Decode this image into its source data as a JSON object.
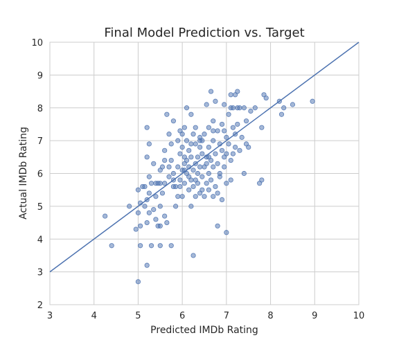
{
  "chart_data": {
    "type": "scatter",
    "title": "Final Model Prediction vs. Target",
    "xlabel": "Predicted IMDb Rating",
    "ylabel": "Actual IMDb Rating",
    "xlim": [
      3,
      10
    ],
    "ylim": [
      2,
      10
    ],
    "xticks": [
      3,
      4,
      5,
      6,
      7,
      8,
      9,
      10
    ],
    "yticks": [
      2,
      3,
      4,
      5,
      6,
      7,
      8,
      9,
      10
    ],
    "grid": true,
    "reference_line": {
      "from": [
        3,
        3
      ],
      "to": [
        10,
        10
      ]
    },
    "series": [
      {
        "color": "#4c72b0",
        "points": [
          [
            4.25,
            4.7
          ],
          [
            4.4,
            3.8
          ],
          [
            4.8,
            5.0
          ],
          [
            4.95,
            4.3
          ],
          [
            5.0,
            2.7
          ],
          [
            5.05,
            4.4
          ],
          [
            5.05,
            3.8
          ],
          [
            5.0,
            4.8
          ],
          [
            5.0,
            5.5
          ],
          [
            5.05,
            5.1
          ],
          [
            5.1,
            5.6
          ],
          [
            5.15,
            5.0
          ],
          [
            5.15,
            5.6
          ],
          [
            5.2,
            3.2
          ],
          [
            5.2,
            4.5
          ],
          [
            5.25,
            4.8
          ],
          [
            5.2,
            5.2
          ],
          [
            5.25,
            5.9
          ],
          [
            5.2,
            6.5
          ],
          [
            5.25,
            6.9
          ],
          [
            5.2,
            7.4
          ],
          [
            5.3,
            3.8
          ],
          [
            5.3,
            5.7
          ],
          [
            5.35,
            4.9
          ],
          [
            5.35,
            6.3
          ],
          [
            5.4,
            4.6
          ],
          [
            5.4,
            5.3
          ],
          [
            5.45,
            4.4
          ],
          [
            5.45,
            5.7
          ],
          [
            5.5,
            3.8
          ],
          [
            5.5,
            4.4
          ],
          [
            5.5,
            5.0
          ],
          [
            5.5,
            6.1
          ],
          [
            5.55,
            5.4
          ],
          [
            5.55,
            6.2
          ],
          [
            5.6,
            4.7
          ],
          [
            5.6,
            5.7
          ],
          [
            5.6,
            6.4
          ],
          [
            5.6,
            6.7
          ],
          [
            5.65,
            4.5
          ],
          [
            5.65,
            7.8
          ],
          [
            5.7,
            5.9
          ],
          [
            5.7,
            6.2
          ],
          [
            5.7,
            7.2
          ],
          [
            5.75,
            3.8
          ],
          [
            5.75,
            6.4
          ],
          [
            5.75,
            6.9
          ],
          [
            5.8,
            5.6
          ],
          [
            5.8,
            6.0
          ],
          [
            5.8,
            7.6
          ],
          [
            5.85,
            5.0
          ],
          [
            5.85,
            5.6
          ],
          [
            5.9,
            5.3
          ],
          [
            5.9,
            6.2
          ],
          [
            5.9,
            7.0
          ],
          [
            5.95,
            5.6
          ],
          [
            5.95,
            5.8
          ],
          [
            5.95,
            7.3
          ],
          [
            6.0,
            5.3
          ],
          [
            6.0,
            6.1
          ],
          [
            6.0,
            6.8
          ],
          [
            6.0,
            7.2
          ],
          [
            6.05,
            5.7
          ],
          [
            6.05,
            6.3
          ],
          [
            6.05,
            7.4
          ],
          [
            6.1,
            6.0
          ],
          [
            6.1,
            6.4
          ],
          [
            6.1,
            7.0
          ],
          [
            6.1,
            8.0
          ],
          [
            6.15,
            5.5
          ],
          [
            6.15,
            6.2
          ],
          [
            6.15,
            6.7
          ],
          [
            6.2,
            5.0
          ],
          [
            6.2,
            5.8
          ],
          [
            6.2,
            6.5
          ],
          [
            6.2,
            7.8
          ],
          [
            6.25,
            3.5
          ],
          [
            6.25,
            5.6
          ],
          [
            6.25,
            6.1
          ],
          [
            6.25,
            7.2
          ],
          [
            6.3,
            5.3
          ],
          [
            6.3,
            6.3
          ],
          [
            6.3,
            6.9
          ],
          [
            6.3,
            7.4
          ],
          [
            6.35,
            5.7
          ],
          [
            6.35,
            6.0
          ],
          [
            6.35,
            6.5
          ],
          [
            6.4,
            5.4
          ],
          [
            6.4,
            6.2
          ],
          [
            6.4,
            6.8
          ],
          [
            6.4,
            7.1
          ],
          [
            6.45,
            5.5
          ],
          [
            6.45,
            5.9
          ],
          [
            6.45,
            6.6
          ],
          [
            6.5,
            5.3
          ],
          [
            6.5,
            6.2
          ],
          [
            6.5,
            7.2
          ],
          [
            6.55,
            5.7
          ],
          [
            6.55,
            6.5
          ],
          [
            6.55,
            8.1
          ],
          [
            6.6,
            5.5
          ],
          [
            6.6,
            6.0
          ],
          [
            6.6,
            6.8
          ],
          [
            6.6,
            7.4
          ],
          [
            6.65,
            5.8
          ],
          [
            6.65,
            6.4
          ],
          [
            6.65,
            8.5
          ],
          [
            6.7,
            5.3
          ],
          [
            6.7,
            6.2
          ],
          [
            6.7,
            7.0
          ],
          [
            6.7,
            7.6
          ],
          [
            6.75,
            5.6
          ],
          [
            6.75,
            6.6
          ],
          [
            6.75,
            8.2
          ],
          [
            6.8,
            4.4
          ],
          [
            6.8,
            5.4
          ],
          [
            6.8,
            6.3
          ],
          [
            6.8,
            7.3
          ],
          [
            6.85,
            5.9
          ],
          [
            6.85,
            6.9
          ],
          [
            6.9,
            5.2
          ],
          [
            6.9,
            6.7
          ],
          [
            6.9,
            7.5
          ],
          [
            6.95,
            6.2
          ],
          [
            6.95,
            8.1
          ],
          [
            7.0,
            4.2
          ],
          [
            7.0,
            5.7
          ],
          [
            7.0,
            6.6
          ],
          [
            7.0,
            7.1
          ],
          [
            7.05,
            7.8
          ],
          [
            7.1,
            5.8
          ],
          [
            7.1,
            6.4
          ],
          [
            7.1,
            8.4
          ],
          [
            7.15,
            6.6
          ],
          [
            7.15,
            7.4
          ],
          [
            7.15,
            8.0
          ],
          [
            7.2,
            6.8
          ],
          [
            7.2,
            7.2
          ],
          [
            7.2,
            8.4
          ],
          [
            7.25,
            7.5
          ],
          [
            7.25,
            8.5
          ],
          [
            7.3,
            6.7
          ],
          [
            7.3,
            8.0
          ],
          [
            7.35,
            7.1
          ],
          [
            7.4,
            6.0
          ],
          [
            7.4,
            8.0
          ],
          [
            7.45,
            6.9
          ],
          [
            7.45,
            7.6
          ],
          [
            7.5,
            6.8
          ],
          [
            7.55,
            7.9
          ],
          [
            7.65,
            8.0
          ],
          [
            7.75,
            5.7
          ],
          [
            7.8,
            5.8
          ],
          [
            7.8,
            7.4
          ],
          [
            7.85,
            8.4
          ],
          [
            7.9,
            8.3
          ],
          [
            8.2,
            8.2
          ],
          [
            8.25,
            7.8
          ],
          [
            8.3,
            8.0
          ],
          [
            8.5,
            8.1
          ],
          [
            8.95,
            8.2
          ],
          [
            6.05,
            6.5
          ],
          [
            6.55,
            6.3
          ],
          [
            6.95,
            7.3
          ],
          [
            7.1,
            8.0
          ],
          [
            7.25,
            8.0
          ],
          [
            6.2,
            6.9
          ],
          [
            5.95,
            6.6
          ],
          [
            6.6,
            6.5
          ],
          [
            6.7,
            7.3
          ],
          [
            5.8,
            5.8
          ],
          [
            6.3,
            5.8
          ],
          [
            6.45,
            7.0
          ],
          [
            6.85,
            6.0
          ],
          [
            5.4,
            5.7
          ],
          [
            6.05,
            6.1
          ],
          [
            5.25,
            5.4
          ],
          [
            7.05,
            6.9
          ],
          [
            6.15,
            5.9
          ],
          [
            6.4,
            7.0
          ],
          [
            6.95,
            6.5
          ],
          [
            5.5,
            5.7
          ]
        ]
      }
    ]
  }
}
